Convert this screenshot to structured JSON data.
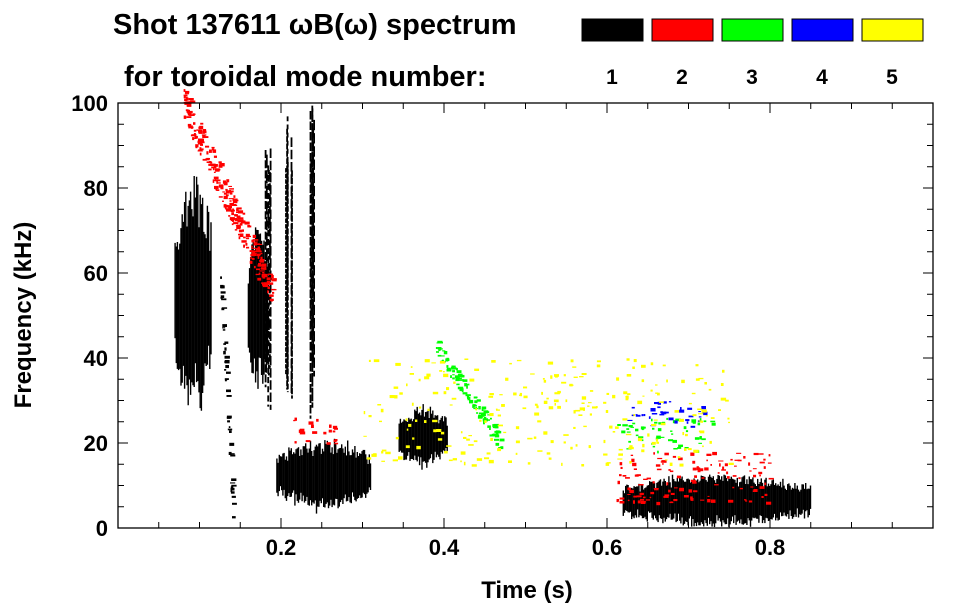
{
  "chart_data": {
    "type": "heatmap",
    "title_line1": "Shot 137611 ωB(ω) spectrum",
    "title_line2": "for toroidal mode number:",
    "xlabel": "Time (s)",
    "ylabel": "Frequency (kHz)",
    "xlim": [
      0.0,
      1.0
    ],
    "ylim": [
      0,
      100
    ],
    "xticks": [
      0.2,
      0.4,
      0.6,
      0.8
    ],
    "xtick_labels": [
      "0.2",
      "0.4",
      "0.6",
      "0.8"
    ],
    "x_minor_step": 0.05,
    "yticks": [
      0,
      20,
      40,
      60,
      80,
      100
    ],
    "ytick_labels": [
      "0",
      "20",
      "40",
      "60",
      "80",
      "100"
    ],
    "y_minor_step": 5,
    "legend": [
      {
        "mode": "1",
        "color": "#000000"
      },
      {
        "mode": "2",
        "color": "#ff0000"
      },
      {
        "mode": "3",
        "color": "#00ff00"
      },
      {
        "mode": "4",
        "color": "#0000ff"
      },
      {
        "mode": "5",
        "color": "#ffff00"
      }
    ],
    "features": [
      {
        "name": "n1 early burst",
        "mode": 1,
        "t": [
          0.07,
          0.115
        ],
        "f": [
          30,
          80
        ]
      },
      {
        "name": "n1 chirp column 0.13",
        "mode": 1,
        "t": [
          0.125,
          0.14
        ],
        "f": [
          5,
          60
        ]
      },
      {
        "name": "n1 column 0.17",
        "mode": 1,
        "t": [
          0.16,
          0.185
        ],
        "f": [
          35,
          70
        ]
      },
      {
        "name": "n1 spike 0.185",
        "mode": 1,
        "t": [
          0.181,
          0.188
        ],
        "f": [
          25,
          95
        ]
      },
      {
        "name": "n1 spike 0.21",
        "mode": 1,
        "t": [
          0.206,
          0.214
        ],
        "f": [
          25,
          98
        ]
      },
      {
        "name": "n1 spike 0.24",
        "mode": 1,
        "t": [
          0.234,
          0.243
        ],
        "f": [
          25,
          100
        ]
      },
      {
        "name": "n1 low band 0.20-0.30",
        "mode": 1,
        "t": [
          0.195,
          0.31
        ],
        "f": [
          5,
          20
        ]
      },
      {
        "name": "n1 band 0.35-0.40",
        "mode": 1,
        "t": [
          0.345,
          0.405
        ],
        "f": [
          15,
          28
        ]
      },
      {
        "name": "n1 low band 0.62-0.85",
        "mode": 1,
        "t": [
          0.62,
          0.85
        ],
        "f": [
          1,
          12
        ]
      },
      {
        "name": "n2 chirp early",
        "mode": 2,
        "t": [
          0.08,
          0.19
        ],
        "f": [
          55,
          100
        ]
      },
      {
        "name": "n2 band 0.21-0.27",
        "mode": 2,
        "t": [
          0.21,
          0.27
        ],
        "f": [
          20,
          26
        ]
      },
      {
        "name": "n2 band 0.61-0.80",
        "mode": 2,
        "t": [
          0.61,
          0.8
        ],
        "f": [
          6,
          18
        ]
      },
      {
        "name": "n3 chirp 0.39-0.47",
        "mode": 3,
        "t": [
          0.39,
          0.47
        ],
        "f": [
          20,
          43
        ]
      },
      {
        "name": "n3 band 0.61-0.73",
        "mode": 3,
        "t": [
          0.61,
          0.73
        ],
        "f": [
          18,
          26
        ]
      },
      {
        "name": "n4 band 0.62-0.72",
        "mode": 4,
        "t": [
          0.62,
          0.72
        ],
        "f": [
          24,
          30
        ]
      },
      {
        "name": "n5 sparse",
        "mode": 5,
        "t": [
          0.3,
          0.75
        ],
        "f": [
          15,
          40
        ]
      }
    ]
  }
}
